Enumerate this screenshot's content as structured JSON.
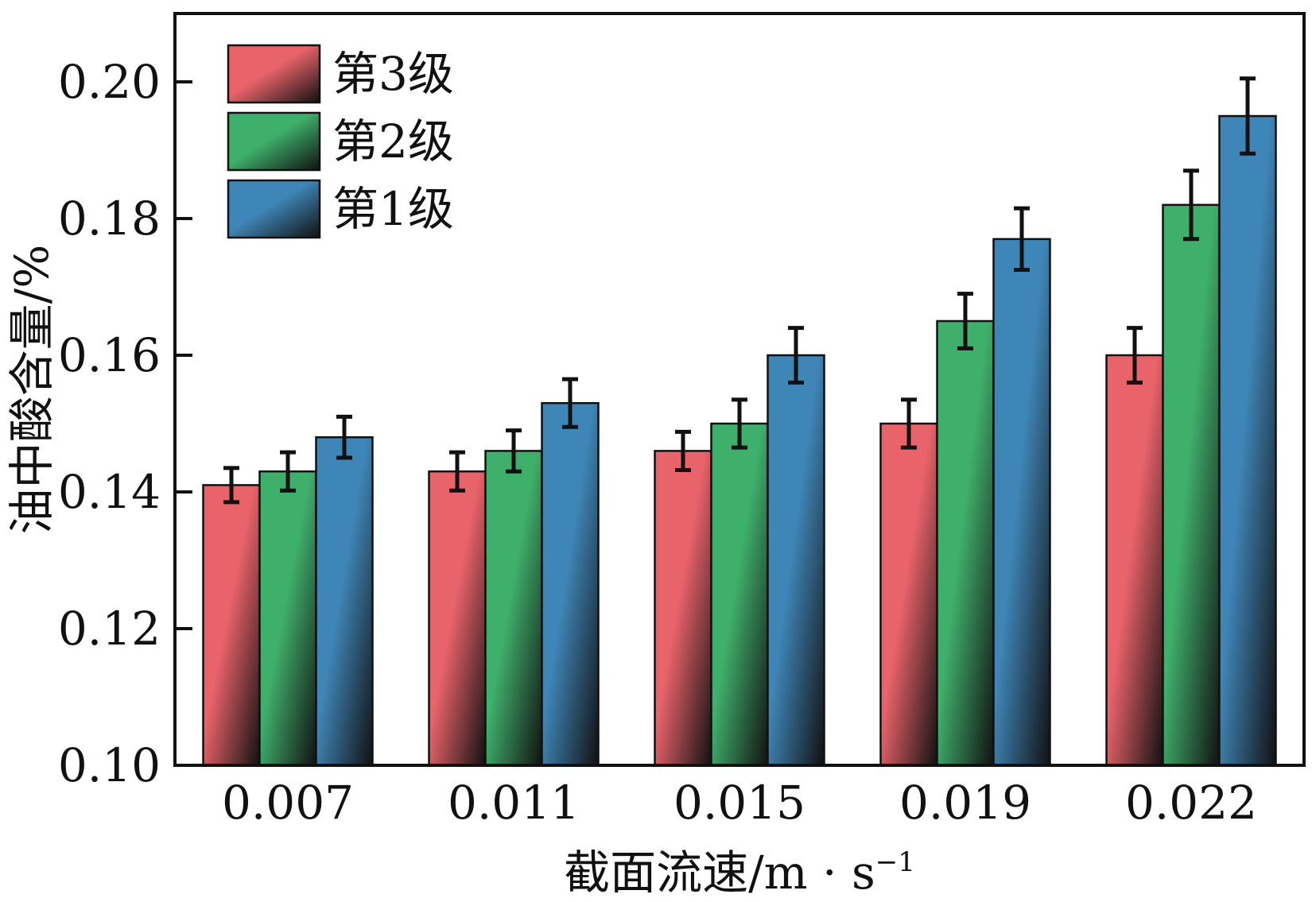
{
  "chart_data": {
    "type": "bar",
    "xlabel": "截面流速/m · s",
    "xlabel_sup": "−1",
    "ylabel": "油中酸含量/%",
    "ylim": [
      0.1,
      0.21
    ],
    "yticks": [
      0.1,
      0.12,
      0.14,
      0.16,
      0.18,
      0.2
    ],
    "ytick_labels": [
      "0.10",
      "0.12",
      "0.14",
      "0.16",
      "0.18",
      "0.20"
    ],
    "categories": [
      "0.007",
      "0.011",
      "0.015",
      "0.019",
      "0.022"
    ],
    "legend_position": "top-left",
    "grid": false,
    "series": [
      {
        "name": "第3级",
        "color": "#e8636a",
        "values": [
          0.141,
          0.143,
          0.146,
          0.15,
          0.16
        ],
        "errors": [
          0.0025,
          0.0028,
          0.0028,
          0.0035,
          0.004
        ]
      },
      {
        "name": "第2级",
        "color": "#3fb06c",
        "values": [
          0.143,
          0.146,
          0.15,
          0.165,
          0.182
        ],
        "errors": [
          0.0028,
          0.003,
          0.0035,
          0.004,
          0.005
        ]
      },
      {
        "name": "第1级",
        "color": "#3f86b8",
        "values": [
          0.148,
          0.153,
          0.16,
          0.177,
          0.195
        ],
        "errors": [
          0.003,
          0.0035,
          0.004,
          0.0045,
          0.0055
        ]
      }
    ]
  }
}
